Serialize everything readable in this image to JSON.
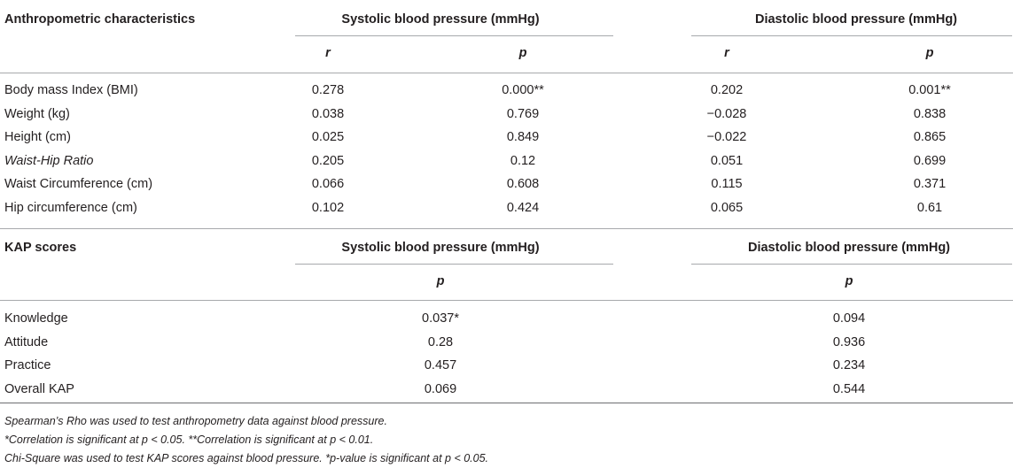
{
  "section1": {
    "header": "Anthropometric characteristics",
    "group1": "Systolic blood pressure (mmHg)",
    "group2": "Diastolic blood pressure (mmHg)",
    "sub": [
      "r",
      "p",
      "r",
      "p"
    ],
    "rows": [
      {
        "label": "Body mass Index (BMI)",
        "italic": false,
        "v": [
          "0.278",
          "0.000**",
          "0.202",
          "0.001**"
        ]
      },
      {
        "label": "Weight (kg)",
        "italic": false,
        "v": [
          "0.038",
          "0.769",
          "−0.028",
          "0.838"
        ]
      },
      {
        "label": "Height (cm)",
        "italic": false,
        "v": [
          "0.025",
          "0.849",
          "−0.022",
          "0.865"
        ]
      },
      {
        "label": "Waist-Hip Ratio",
        "italic": true,
        "v": [
          "0.205",
          "0.12",
          "0.051",
          "0.699"
        ]
      },
      {
        "label": "Waist Circumference (cm)",
        "italic": false,
        "v": [
          "0.066",
          "0.608",
          "0.115",
          "0.371"
        ]
      },
      {
        "label": "Hip circumference (cm)",
        "italic": false,
        "v": [
          "0.102",
          "0.424",
          "0.065",
          "0.61"
        ]
      }
    ]
  },
  "section2": {
    "header": "KAP scores",
    "group1": "Systolic blood pressure (mmHg)",
    "group2": "Diastolic blood pressure (mmHg)",
    "sub": [
      "p",
      "p"
    ],
    "rows": [
      {
        "label": "Knowledge",
        "v": [
          "0.037*",
          "0.094"
        ]
      },
      {
        "label": "Attitude",
        "v": [
          "0.28",
          "0.936"
        ]
      },
      {
        "label": "Practice",
        "v": [
          "0.457",
          "0.234"
        ]
      },
      {
        "label": "Overall KAP",
        "v": [
          "0.069",
          "0.544"
        ]
      }
    ]
  },
  "footnotes": [
    "Spearman’s Rho was used to test anthropometry data against blood pressure.",
    "*Correlation is significant at p < 0.05. **Correlation is significant at p < 0.01.",
    "Chi-Square was used to test KAP scores against blood pressure. *p-value is significant at p < 0.05."
  ]
}
